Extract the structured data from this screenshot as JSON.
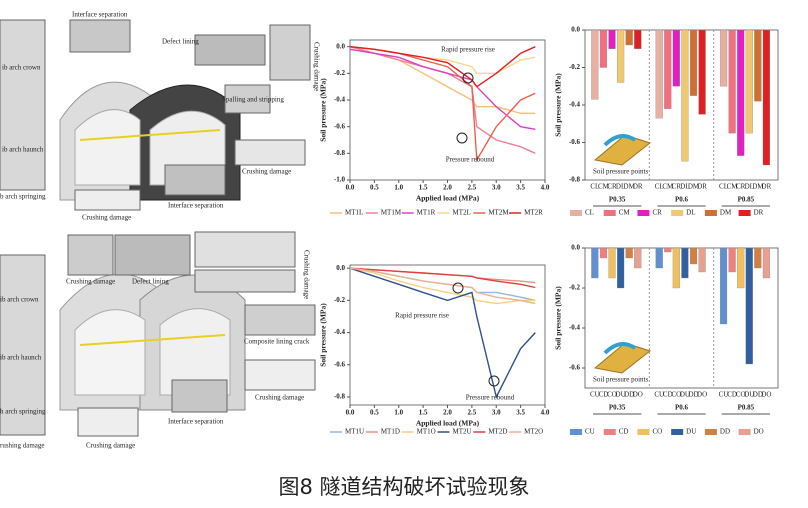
{
  "caption": "图8 隧道结构破坏试验现象",
  "left_panel": {
    "labels": [
      "Interface separation",
      "Defect lining",
      "ib arch crown",
      "ib arch haunch",
      "b arch springing",
      "Spalling and stripping",
      "Crushing damage",
      "Interface separation",
      "Crushing damage",
      "Crushing damage",
      "Defect lining",
      "ib arch crown",
      "ib arch haunch",
      "h arch springing",
      "rushing damage",
      "Composite lining crack",
      "Crushing damage",
      "Interface separation",
      "Crushing damage",
      "Crushing damage",
      "Crushing damage"
    ]
  },
  "chart_data": [
    {
      "type": "line",
      "x_label": "Applied load (MPa)",
      "y_label": "Soil pressure (MPa)",
      "x": [
        0,
        0.5,
        1,
        1.5,
        2,
        2.5,
        2.6,
        3,
        3.5,
        3.8
      ],
      "xlim": [
        0,
        4
      ],
      "xticks": [
        {
          "value": 0,
          "label": "0.0"
        },
        0.5,
        {
          "value": 1,
          "label": "1.0"
        },
        1.5,
        {
          "value": 2,
          "label": "2.0"
        },
        2.5,
        {
          "value": 3,
          "label": "3.0"
        },
        3.5,
        {
          "value": 4,
          "label": "4.0"
        }
      ],
      "ylim": [
        -1.0,
        0.05
      ],
      "yticks": [
        {
          "value": 0,
          "label": "0.0"
        },
        -0.2,
        -0.4,
        -0.6,
        -0.8,
        {
          "value": -1,
          "label": "-1.0"
        }
      ],
      "annotations": [
        "Rapid pressure rise",
        "Pressure rebound"
      ],
      "series": [
        {
          "name": "MT1L",
          "color": "#f5c080",
          "values": [
            0,
            -0.05,
            -0.1,
            -0.2,
            -0.3,
            -0.4,
            -0.45,
            -0.45,
            -0.5,
            -0.5
          ]
        },
        {
          "name": "MT1M",
          "color": "#f08090",
          "values": [
            0,
            -0.05,
            -0.1,
            -0.15,
            -0.2,
            -0.3,
            -0.6,
            -0.7,
            -0.75,
            -0.8
          ]
        },
        {
          "name": "MT1R",
          "color": "#e040c0",
          "values": [
            -0.02,
            -0.05,
            -0.08,
            -0.15,
            -0.2,
            -0.25,
            -0.3,
            -0.45,
            -0.6,
            -0.62
          ]
        },
        {
          "name": "MT2L",
          "color": "#f8d890",
          "values": [
            0,
            -0.02,
            -0.05,
            -0.08,
            -0.1,
            -0.15,
            -0.2,
            -0.2,
            -0.1,
            -0.08
          ]
        },
        {
          "name": "MT2M",
          "color": "#e86050",
          "values": [
            0,
            -0.02,
            -0.05,
            -0.1,
            -0.15,
            -0.3,
            -0.85,
            -0.6,
            -0.4,
            -0.35
          ]
        },
        {
          "name": "MT2R",
          "color": "#e02020",
          "values": [
            0,
            -0.02,
            -0.05,
            -0.08,
            -0.12,
            -0.25,
            -0.3,
            -0.2,
            -0.05,
            0
          ]
        }
      ]
    },
    {
      "type": "bar",
      "y_label": "Soil pressure (MPa)",
      "inset_label": "Soil pressure points",
      "categories": [
        "P0.35",
        "P0.6",
        "P0.85"
      ],
      "ylim": [
        -0.8,
        0
      ],
      "yticks": [
        {
          "value": 0,
          "label": "0.0"
        },
        -0.2,
        -0.4,
        -0.6,
        -0.8
      ],
      "series": [
        {
          "name": "CL",
          "color": "#e8b0a0",
          "values": [
            -0.37,
            -0.47,
            -0.3
          ]
        },
        {
          "name": "CM",
          "color": "#f07080",
          "values": [
            -0.2,
            -0.42,
            -0.55
          ]
        },
        {
          "name": "CR",
          "color": "#e020c0",
          "values": [
            -0.1,
            -0.3,
            -0.67
          ]
        },
        {
          "name": "DL",
          "color": "#f0c870",
          "values": [
            -0.28,
            -0.7,
            -0.55
          ]
        },
        {
          "name": "DM",
          "color": "#d07030",
          "values": [
            -0.08,
            -0.35,
            -0.38
          ]
        },
        {
          "name": "DR",
          "color": "#e02020",
          "values": [
            -0.1,
            -0.45,
            -0.72
          ]
        }
      ]
    },
    {
      "type": "line",
      "x_label": "Applied load (MPa)",
      "y_label": "Soil pressure (MPa)",
      "x": [
        0,
        0.5,
        1,
        1.5,
        2,
        2.5,
        2.6,
        3,
        3.5,
        3.8
      ],
      "xlim": [
        0,
        4
      ],
      "xticks": [
        {
          "value": 0,
          "label": "0.0"
        },
        0.5,
        {
          "value": 1,
          "label": "1.0"
        },
        1.5,
        {
          "value": 2,
          "label": "2.0"
        },
        2.5,
        {
          "value": 3,
          "label": "3.0"
        },
        3.5,
        {
          "value": 4,
          "label": "4.0"
        }
      ],
      "ylim": [
        -0.85,
        0.02
      ],
      "yticks": [
        {
          "value": 0,
          "label": "0.0"
        },
        -0.2,
        -0.4,
        -0.6,
        -0.8
      ],
      "annotations": [
        "Rapid pressure rise",
        "Pressure rebound"
      ],
      "series": [
        {
          "name": "MT1U",
          "color": "#90b8e0",
          "values": [
            0,
            -0.02,
            -0.05,
            -0.08,
            -0.1,
            -0.12,
            -0.15,
            -0.15,
            -0.18,
            -0.2
          ]
        },
        {
          "name": "MT1D",
          "color": "#f09080",
          "values": [
            0,
            -0.01,
            -0.02,
            -0.03,
            -0.04,
            -0.05,
            -0.06,
            -0.07,
            -0.08,
            -0.09
          ]
        },
        {
          "name": "MT1O",
          "color": "#f8d080",
          "values": [
            0,
            -0.03,
            -0.08,
            -0.12,
            -0.15,
            -0.18,
            -0.2,
            -0.22,
            -0.2,
            -0.2
          ]
        },
        {
          "name": "MT2U",
          "color": "#305090",
          "values": [
            0,
            -0.05,
            -0.1,
            -0.15,
            -0.2,
            -0.15,
            -0.3,
            -0.8,
            -0.5,
            -0.4
          ]
        },
        {
          "name": "MT2D",
          "color": "#e04040",
          "values": [
            0,
            -0.01,
            -0.02,
            -0.03,
            -0.04,
            -0.05,
            -0.06,
            -0.08,
            -0.1,
            -0.12
          ]
        },
        {
          "name": "MT2O",
          "color": "#f0b090",
          "values": [
            0,
            -0.02,
            -0.05,
            -0.08,
            -0.1,
            -0.12,
            -0.15,
            -0.18,
            -0.2,
            -0.22
          ]
        }
      ]
    },
    {
      "type": "bar",
      "y_label": "Soil pressure (MPa)",
      "inset_label": "Soil pressure points",
      "categories": [
        "P0.35",
        "P0.6",
        "P0.85"
      ],
      "ylim": [
        -0.7,
        0
      ],
      "yticks": [
        {
          "value": 0,
          "label": "0.0"
        },
        -0.2,
        -0.4,
        -0.6
      ],
      "series": [
        {
          "name": "CU",
          "color": "#6090d0",
          "values": [
            -0.15,
            -0.1,
            -0.38
          ]
        },
        {
          "name": "CD",
          "color": "#f08080",
          "values": [
            -0.05,
            -0.02,
            -0.12
          ]
        },
        {
          "name": "CO",
          "color": "#f0c060",
          "values": [
            -0.15,
            -0.2,
            -0.2
          ]
        },
        {
          "name": "DU",
          "color": "#3060a0",
          "values": [
            -0.2,
            -0.15,
            -0.58
          ]
        },
        {
          "name": "DD",
          "color": "#d08040",
          "values": [
            -0.05,
            -0.08,
            -0.1
          ]
        },
        {
          "name": "DO",
          "color": "#e8a090",
          "values": [
            -0.1,
            -0.12,
            -0.15
          ]
        }
      ]
    }
  ]
}
